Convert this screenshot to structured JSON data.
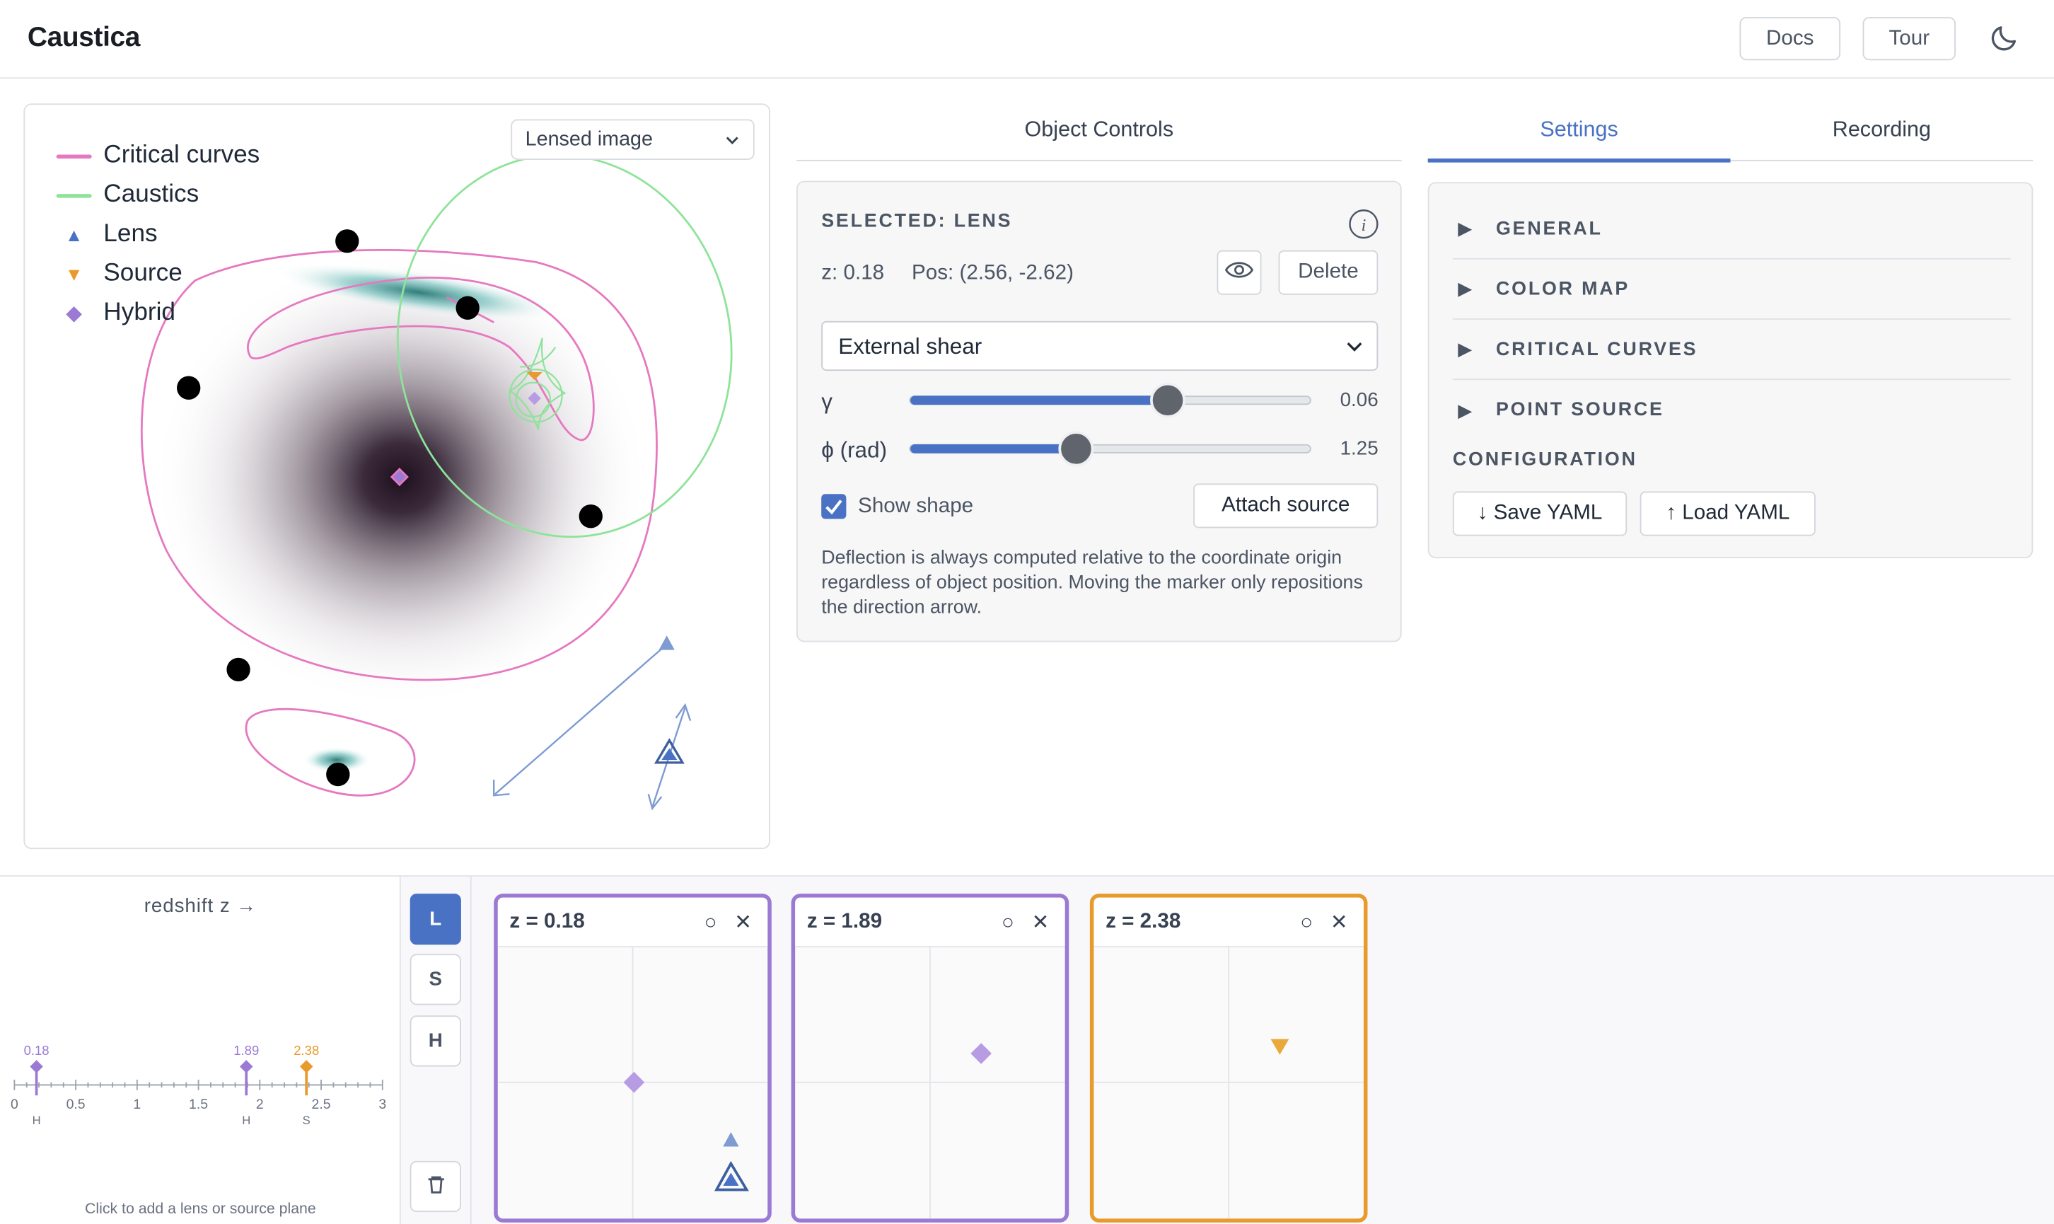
{
  "app": {
    "title": "Caustica",
    "docs_label": "Docs",
    "tour_label": "Tour",
    "theme_icon": "moon-icon"
  },
  "viewport": {
    "view_mode": "Lensed image",
    "legend": [
      {
        "label": "Critical curves",
        "color": "#e678c0"
      },
      {
        "label": "Caustics",
        "color": "#8ee39a"
      },
      {
        "label": "Lens",
        "color": "#4a72c4",
        "marker": "triangle-up"
      },
      {
        "label": "Source",
        "color": "#e89a2c",
        "marker": "triangle-down"
      },
      {
        "label": "Hybrid",
        "color": "#9b7ad4",
        "marker": "diamond"
      }
    ]
  },
  "object_controls": {
    "tab_label": "Object Controls",
    "selected_label": "SELECTED: LENS",
    "z_text": "z: 0.18",
    "pos_text": "Pos: (2.56, -2.62)",
    "delete_label": "Delete",
    "profile": "External shear",
    "params": [
      {
        "symbol": "γ",
        "value": "0.06",
        "fraction": 0.64
      },
      {
        "symbol": "ϕ (rad)",
        "value": "1.25",
        "fraction": 0.41
      }
    ],
    "show_shape_label": "Show shape",
    "show_shape_checked": true,
    "attach_label": "Attach source",
    "note": "Deflection is always computed relative to the coordinate origin regardless of object position. Moving the marker only repositions the direction arrow."
  },
  "settings": {
    "tabs": [
      {
        "label": "Settings",
        "active": true
      },
      {
        "label": "Recording",
        "active": false
      }
    ],
    "sections": [
      "GENERAL",
      "COLOR MAP",
      "CRITICAL CURVES",
      "POINT SOURCE"
    ],
    "configuration_label": "CONFIGURATION",
    "save_label": "↓ Save YAML",
    "load_label": "↑ Load YAML"
  },
  "redshift": {
    "title": "redshift z →",
    "ticks": [
      "0",
      "0.5",
      "1",
      "1.5",
      "2",
      "2.5",
      "3"
    ],
    "markers": [
      {
        "z": 0.18,
        "label": "0.18",
        "kind": "H",
        "color": "#9b7ad4"
      },
      {
        "z": 1.89,
        "label": "1.89",
        "kind": "H",
        "color": "#9b7ad4"
      },
      {
        "z": 2.38,
        "label": "2.38",
        "kind": "S",
        "color": "#e89a2c"
      }
    ],
    "hint": "Click to add a lens or source plane"
  },
  "toolbar": {
    "lens_btn": "L",
    "source_btn": "S",
    "hybrid_btn": "H"
  },
  "planes": [
    {
      "title": "z = 0.18",
      "border": "#9b7ad4"
    },
    {
      "title": "z = 1.89",
      "border": "#9b7ad4"
    },
    {
      "title": "z = 2.38",
      "border": "#e89a2c"
    }
  ]
}
